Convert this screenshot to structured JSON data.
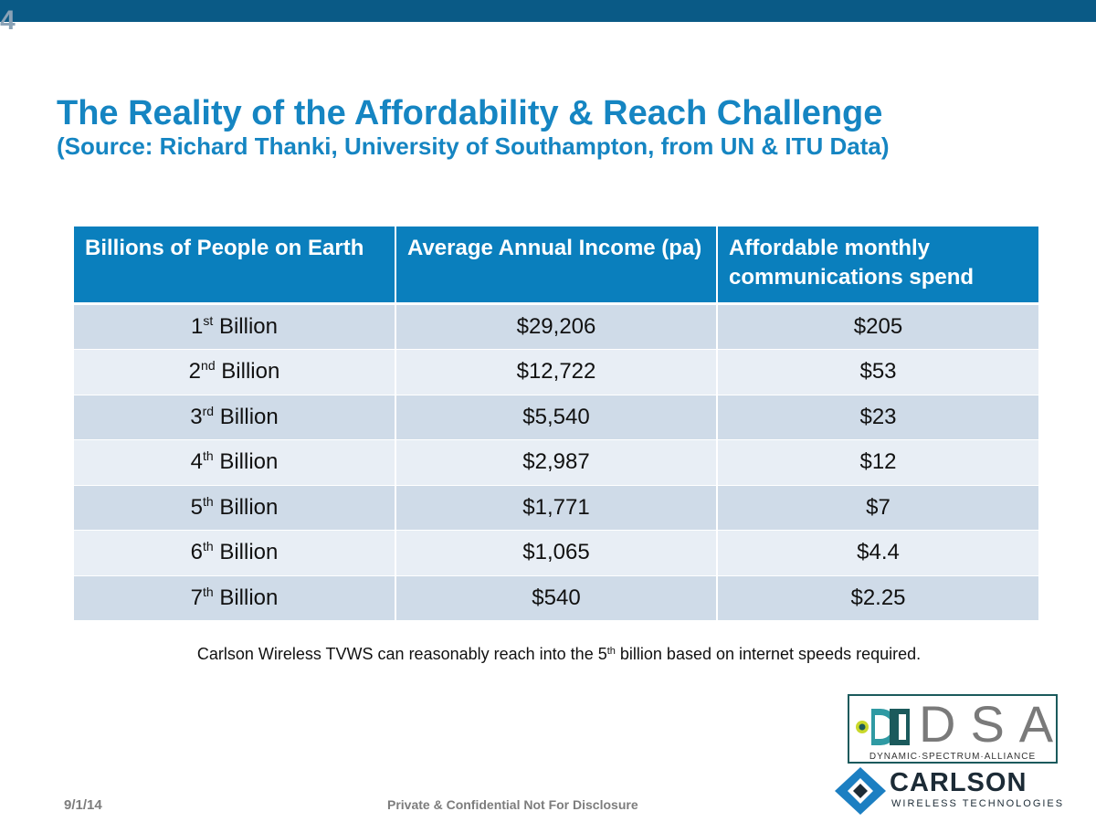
{
  "slide": {
    "number": "4",
    "title": "The Reality of the Affordability & Reach Challenge",
    "subtitle": "(Source: Richard Thanki, University of Southampton, from UN & ITU Data)"
  },
  "table": {
    "headers": [
      "Billions of People on Earth",
      "Average Annual Income (pa)",
      "Affordable monthly communications spend"
    ],
    "rows": [
      {
        "ordinal": "1",
        "suffix": "st",
        "word": "Billion",
        "income": "$29,206",
        "spend": "$205"
      },
      {
        "ordinal": "2",
        "suffix": "nd",
        "word": "Billion",
        "income": "$12,722",
        "spend": "$53"
      },
      {
        "ordinal": "3",
        "suffix": "rd",
        "word": "Billion",
        "income": "$5,540",
        "spend": "$23"
      },
      {
        "ordinal": "4",
        "suffix": "th",
        "word": "Billion",
        "income": "$2,987",
        "spend": "$12"
      },
      {
        "ordinal": "5",
        "suffix": "th",
        "word": "Billion",
        "income": "$1,771",
        "spend": "$7"
      },
      {
        "ordinal": "6",
        "suffix": "th",
        "word": "Billion",
        "income": "$1,065",
        "spend": "$4.4"
      },
      {
        "ordinal": "7",
        "suffix": "th",
        "word": "Billion",
        "income": "$540",
        "spend": "$2.25"
      }
    ]
  },
  "footnote": {
    "before": "Carlson Wireless TVWS can reasonably reach into the 5",
    "sup": "th",
    "after": " billion based on internet speeds required."
  },
  "footer": {
    "date": "9/1/14",
    "confidential": "Private & Confidential Not For Disclosure"
  },
  "logos": {
    "dsa": {
      "letters": "DSA",
      "tagline": "DYNAMIC·SPECTRUM·ALLIANCE"
    },
    "carlson": {
      "name": "CARLSON",
      "tagline": "WIRELESS TECHNOLOGIES"
    }
  },
  "colors": {
    "brand_blue": "#1585c2",
    "header_blue": "#0a7fbd",
    "top_bar": "#0a5a86",
    "row_odd": "#cfdbe8",
    "row_even": "#e8eef5"
  }
}
